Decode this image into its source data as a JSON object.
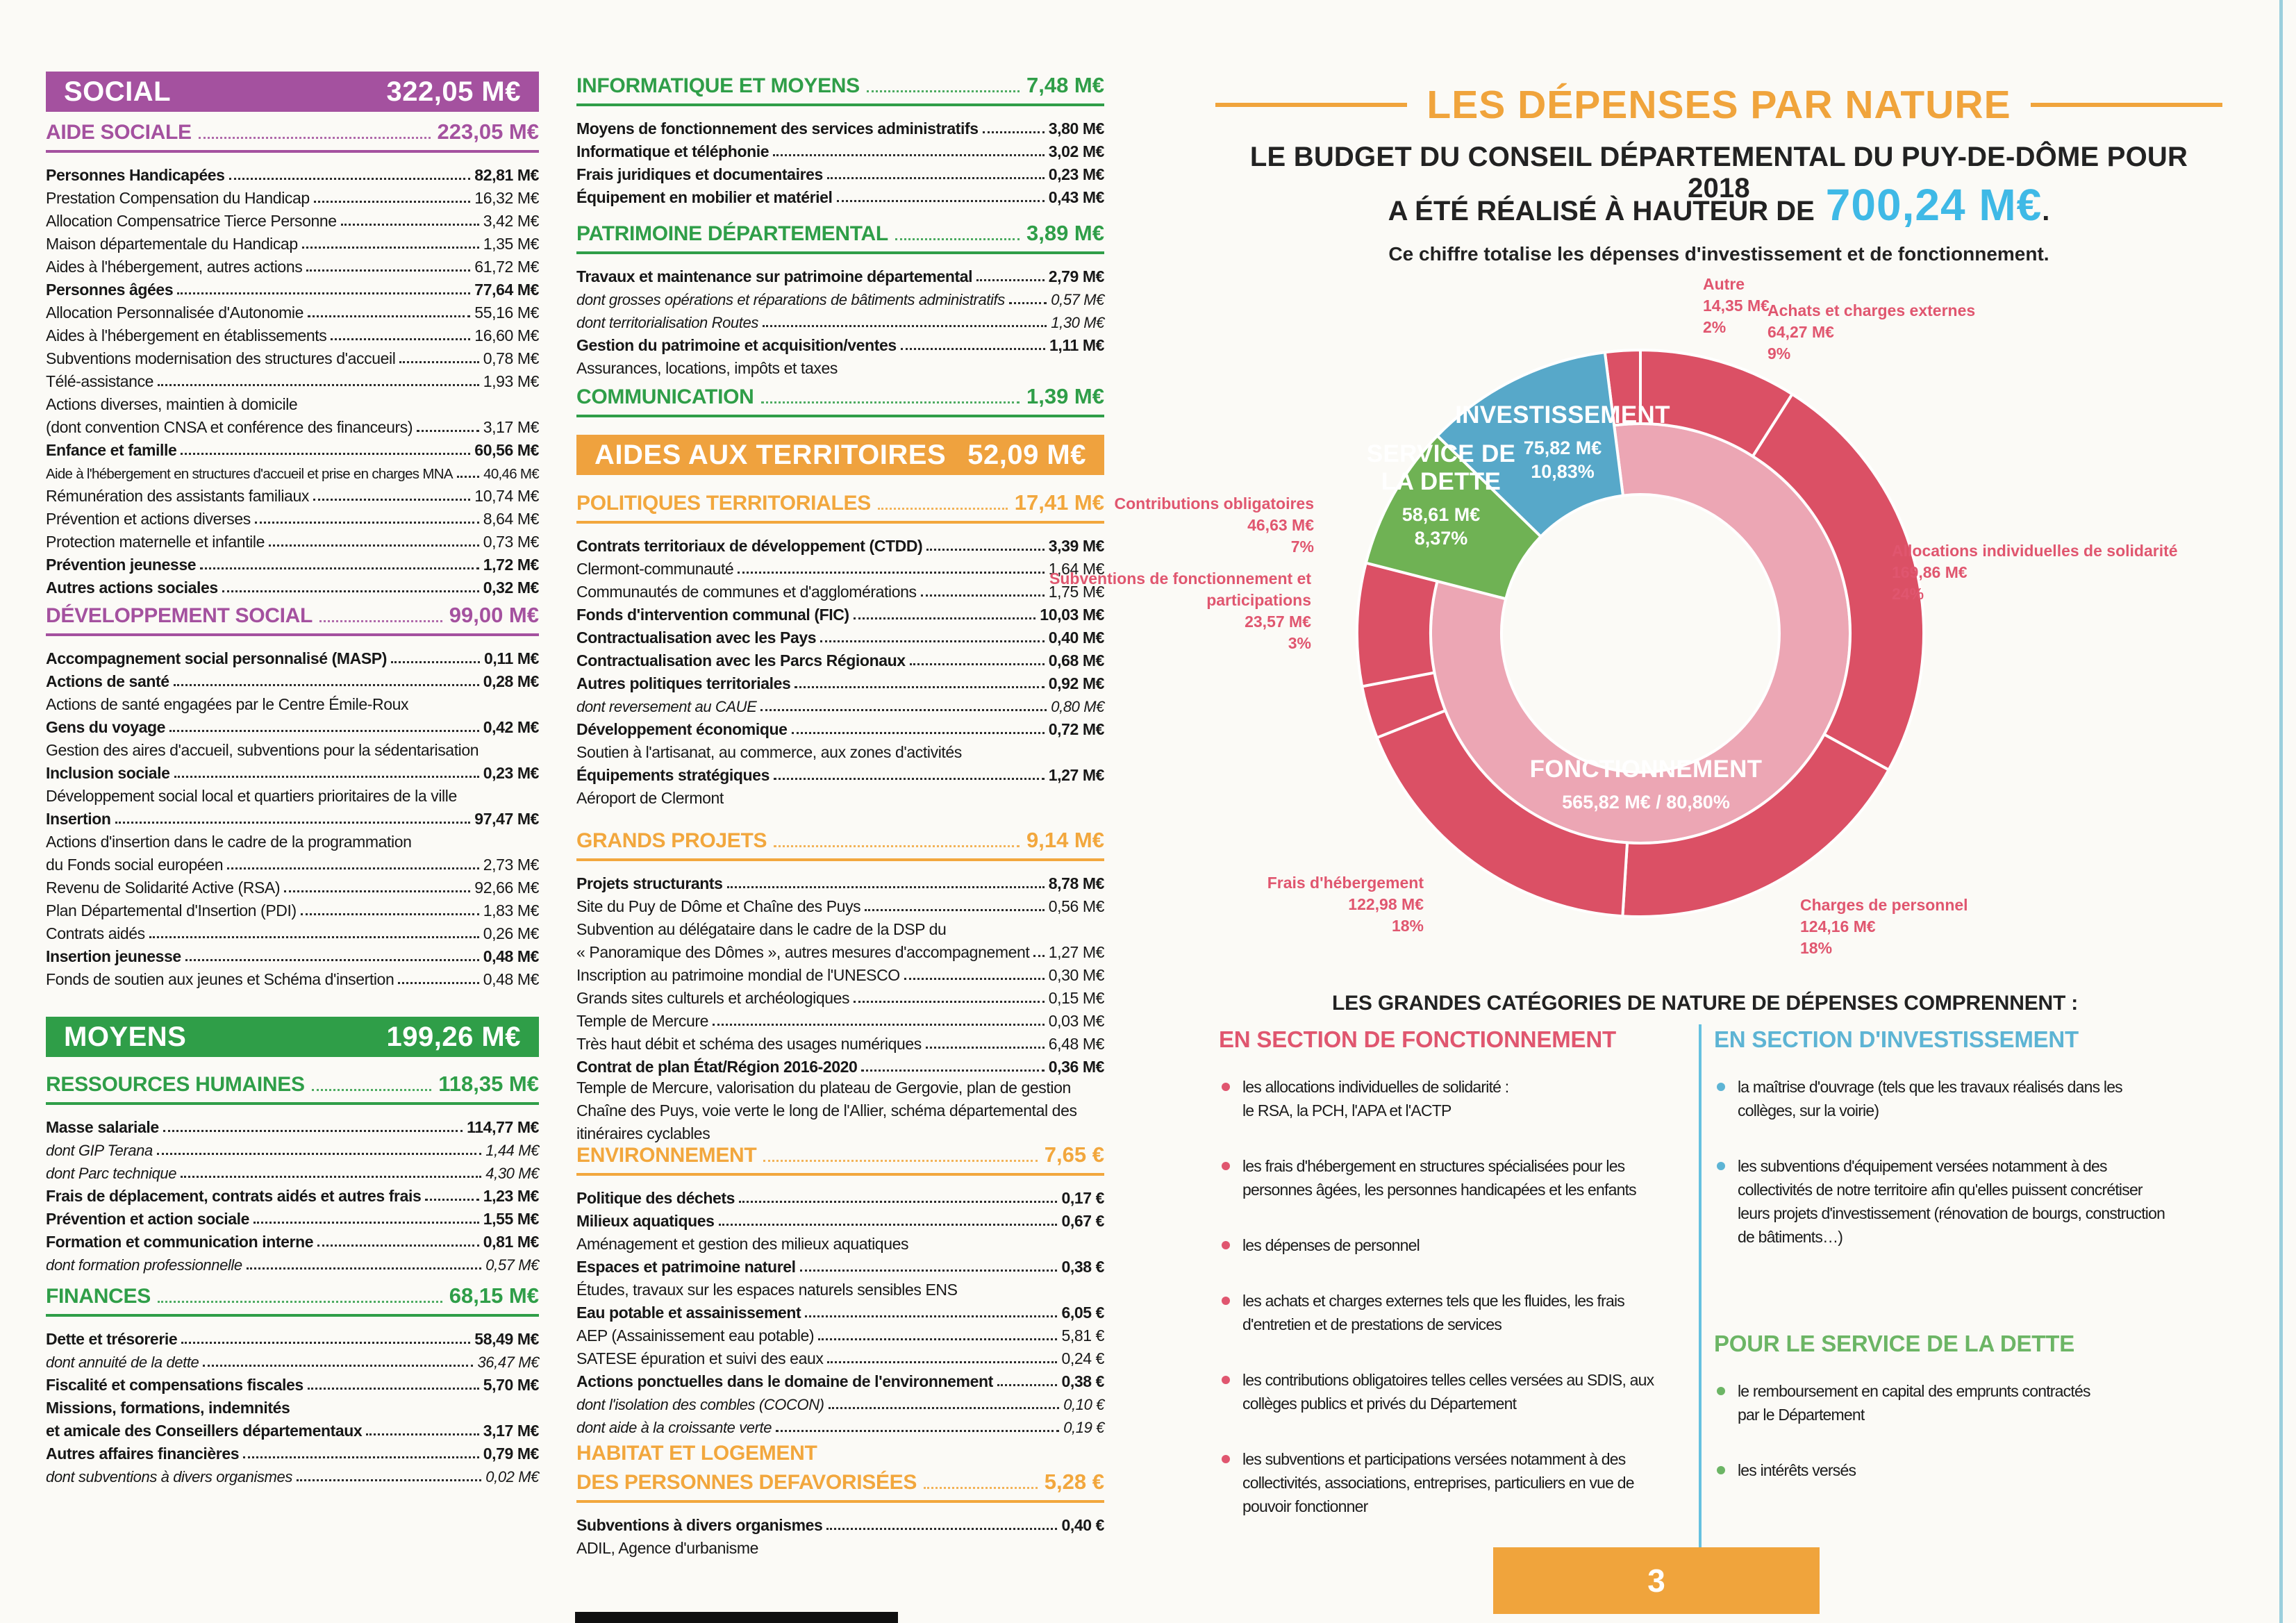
{
  "page": {
    "number": "3"
  },
  "colors": {
    "purple": "#a4519f",
    "green": "#2f9e48",
    "orange_banner": "#efa23e",
    "orange_text": "#f2a73d",
    "title_orange": "#f0a43c",
    "amount_blue": "#3fb9e6",
    "label_red": "#e0566f",
    "invest_blue": "#5db4d4",
    "dette_green": "#6cb565",
    "divider_blue": "#66c1e0",
    "edge_line": "#9ccfdd"
  },
  "left_column": {
    "sections": [
      {
        "kind": "banner",
        "color": "#a4519f",
        "title": "SOCIAL",
        "value": "322,05 M€"
      },
      {
        "kind": "group",
        "color": "#a4519f",
        "title": "AIDE SOCIALE",
        "value": "223,05 M€",
        "rows": [
          {
            "s": "b",
            "l": "Personnes Handicapées",
            "v": "82,81 M€"
          },
          {
            "s": "n",
            "l": "Prestation Compensation du Handicap",
            "v": "16,32 M€"
          },
          {
            "s": "n",
            "l": "Allocation Compensatrice Tierce Personne",
            "v": "3,42 M€"
          },
          {
            "s": "n",
            "l": "Maison départementale du Handicap",
            "v": "1,35 M€"
          },
          {
            "s": "n",
            "l": "Aides à l'hébergement, autres actions",
            "v": "61,72 M€"
          },
          {
            "s": "b",
            "l": "Personnes âgées",
            "v": "77,64 M€"
          },
          {
            "s": "n",
            "l": "Allocation Personnalisée d'Autonomie",
            "v": "55,16 M€"
          },
          {
            "s": "n",
            "l": "Aides à l'hébergement en établissements",
            "v": "16,60 M€"
          },
          {
            "s": "n",
            "l": "Subventions modernisation des structures d'accueil",
            "v": "0,78 M€"
          },
          {
            "s": "n",
            "l": "Télé-assistance",
            "v": "1,93 M€"
          },
          {
            "s": "d",
            "l": "Actions diverses, maintien à domicile",
            "v": ""
          },
          {
            "s": "n",
            "l": "(dont convention CNSA et conférence des financeurs)",
            "v": "3,17 M€"
          },
          {
            "s": "b",
            "l": "Enfance et famille",
            "v": "60,56 M€"
          },
          {
            "s": "t",
            "l": "Aide à l'hébergement en structures d'accueil et prise en charges MNA",
            "v": "40,46 M€"
          },
          {
            "s": "n",
            "l": "Rémunération des assistants familiaux",
            "v": "10,74 M€"
          },
          {
            "s": "n",
            "l": "Prévention et actions diverses",
            "v": "8,64 M€"
          },
          {
            "s": "n",
            "l": "Protection maternelle et infantile",
            "v": "0,73 M€"
          },
          {
            "s": "b",
            "l": "Prévention jeunesse",
            "v": "1,72 M€"
          },
          {
            "s": "b",
            "l": "Autres actions sociales",
            "v": "0,32 M€"
          }
        ]
      },
      {
        "kind": "group",
        "color": "#a4519f",
        "title": "DÉVELOPPEMENT SOCIAL",
        "value": "99,00 M€",
        "rows": [
          {
            "s": "b",
            "l": "Accompagnement social personnalisé (MASP)",
            "v": "0,11 M€"
          },
          {
            "s": "b",
            "l": "Actions de santé",
            "v": "0,28 M€"
          },
          {
            "s": "d",
            "l": "Actions de santé engagées par le Centre Émile-Roux",
            "v": ""
          },
          {
            "s": "b",
            "l": "Gens du voyage",
            "v": "0,42 M€"
          },
          {
            "s": "d",
            "l": "Gestion des aires d'accueil, subventions pour la sédentarisation",
            "v": ""
          },
          {
            "s": "b",
            "l": "Inclusion sociale",
            "v": "0,23 M€"
          },
          {
            "s": "d",
            "l": "Développement social local et quartiers prioritaires de la ville",
            "v": ""
          },
          {
            "s": "b",
            "l": "Insertion",
            "v": "97,47 M€"
          },
          {
            "s": "d",
            "l": "Actions d'insertion dans le cadre de la programmation",
            "v": ""
          },
          {
            "s": "n",
            "l": "du Fonds social européen",
            "v": "2,73 M€"
          },
          {
            "s": "n",
            "l": "Revenu de Solidarité Active (RSA)",
            "v": "92,66 M€"
          },
          {
            "s": "n",
            "l": "Plan Départemental d'Insertion (PDI)",
            "v": "1,83 M€"
          },
          {
            "s": "n",
            "l": "Contrats aidés",
            "v": "0,26 M€"
          },
          {
            "s": "b",
            "l": "Insertion jeunesse",
            "v": "0,48 M€"
          },
          {
            "s": "n",
            "l": "Fonds de soutien aux jeunes et Schéma d'insertion",
            "v": "0,48 M€"
          }
        ]
      },
      {
        "kind": "banner",
        "color": "#2f9e48",
        "title": "MOYENS",
        "value": "199,26 M€"
      },
      {
        "kind": "group",
        "color": "#2f9e48",
        "title": "RESSOURCES HUMAINES",
        "value": "118,35 M€",
        "rows": [
          {
            "s": "b",
            "l": "Masse salariale",
            "v": "114,77 M€"
          },
          {
            "s": "i",
            "l": "dont GIP Terana",
            "v": "1,44 M€"
          },
          {
            "s": "i",
            "l": "dont Parc technique",
            "v": "4,30 M€"
          },
          {
            "s": "b",
            "l": "Frais de déplacement, contrats aidés et autres frais",
            "v": "1,23 M€"
          },
          {
            "s": "b",
            "l": "Prévention et action sociale",
            "v": "1,55 M€"
          },
          {
            "s": "b",
            "l": "Formation et communication interne",
            "v": "0,81 M€"
          },
          {
            "s": "i",
            "l": "dont formation professionnelle",
            "v": "0,57 M€"
          }
        ]
      },
      {
        "kind": "group",
        "color": "#2f9e48",
        "title": "FINANCES",
        "value": "68,15 M€",
        "rows": [
          {
            "s": "b",
            "l": "Dette et trésorerie",
            "v": "58,49 M€"
          },
          {
            "s": "i",
            "l": "dont annuité de la dette",
            "v": "36,47 M€"
          },
          {
            "s": "b",
            "l": "Fiscalité et compensations fiscales",
            "v": "5,70 M€"
          },
          {
            "s": "b",
            "l": "Missions, formations, indemnités",
            "v": ""
          },
          {
            "s": "b",
            "l": "et amicale des Conseillers départementaux",
            "v": "3,17 M€"
          },
          {
            "s": "b",
            "l": "Autres affaires financières",
            "v": "0,79 M€"
          },
          {
            "s": "i",
            "l": "dont subventions à divers organismes",
            "v": "0,02 M€"
          }
        ]
      }
    ]
  },
  "middle_column": {
    "sections": [
      {
        "kind": "group",
        "color": "#2f9e48",
        "title": "INFORMATIQUE ET MOYENS",
        "value": "7,48 M€",
        "rows": [
          {
            "s": "b",
            "l": "Moyens de fonctionnement des services administratifs",
            "v": "3,80 M€"
          },
          {
            "s": "b",
            "l": "Informatique et téléphonie",
            "v": "3,02 M€"
          },
          {
            "s": "b",
            "l": "Frais juridiques et documentaires",
            "v": "0,23 M€"
          },
          {
            "s": "b",
            "l": "Équipement en mobilier et matériel",
            "v": "0,43 M€"
          }
        ]
      },
      {
        "kind": "group",
        "color": "#2f9e48",
        "title": "PATRIMOINE DÉPARTEMENTAL",
        "value": "3,89 M€",
        "rows": [
          {
            "s": "b",
            "l": "Travaux et maintenance sur patrimoine départemental",
            "v": "2,79 M€"
          },
          {
            "s": "i",
            "l": "dont grosses opérations et réparations de bâtiments administratifs",
            "v": "0,57 M€"
          },
          {
            "s": "i",
            "l": "dont territorialisation Routes",
            "v": "1,30 M€"
          },
          {
            "s": "b",
            "l": "Gestion du patrimoine et acquisition/ventes",
            "v": "1,11 M€"
          },
          {
            "s": "d",
            "l": "Assurances, locations, impôts et taxes",
            "v": ""
          }
        ]
      },
      {
        "kind": "group",
        "color": "#2f9e48",
        "title": "COMMUNICATION",
        "value": "1,39 M€",
        "rows": []
      },
      {
        "kind": "banner",
        "color": "#efa23e",
        "title": "AIDES AUX TERRITOIRES",
        "value": "52,09 M€"
      },
      {
        "kind": "group",
        "color": "#f2a73d",
        "title": "POLITIQUES TERRITORIALES",
        "value": "17,41 M€",
        "rows": [
          {
            "s": "b",
            "l": "Contrats territoriaux de développement (CTDD)",
            "v": "3,39 M€"
          },
          {
            "s": "n",
            "l": "Clermont-communauté",
            "v": "1,64 M€"
          },
          {
            "s": "n",
            "l": "Communautés de communes et d'agglomérations",
            "v": "1,75 M€"
          },
          {
            "s": "b",
            "l": "Fonds d'intervention communal (FIC)",
            "v": "10,03 M€"
          },
          {
            "s": "b",
            "l": "Contractualisation avec les Pays",
            "v": "0,40 M€"
          },
          {
            "s": "b",
            "l": "Contractualisation avec les Parcs Régionaux",
            "v": "0,68 M€"
          },
          {
            "s": "b",
            "l": "Autres politiques territoriales",
            "v": "0,92 M€"
          },
          {
            "s": "i",
            "l": "dont reversement au CAUE",
            "v": "0,80 M€"
          },
          {
            "s": "b",
            "l": "Développement économique",
            "v": "0,72 M€"
          },
          {
            "s": "d",
            "l": "Soutien à l'artisanat, au commerce, aux zones d'activités",
            "v": ""
          },
          {
            "s": "b",
            "l": "Équipements stratégiques",
            "v": "1,27 M€"
          },
          {
            "s": "d",
            "l": "Aéroport de Clermont",
            "v": ""
          }
        ]
      },
      {
        "kind": "group",
        "color": "#f2a73d",
        "title": "GRANDS PROJETS",
        "value": "9,14 M€",
        "rows": [
          {
            "s": "b",
            "l": "Projets structurants",
            "v": "8,78 M€"
          },
          {
            "s": "n",
            "l": "Site du Puy de Dôme et Chaîne des Puys",
            "v": "0,56 M€"
          },
          {
            "s": "d",
            "l": "Subvention au délégataire dans le cadre de la DSP du",
            "v": ""
          },
          {
            "s": "n",
            "l": "« Panoramique des Dômes », autres mesures d'accompagnement",
            "v": "1,27 M€"
          },
          {
            "s": "n",
            "l": "Inscription au patrimoine mondial de l'UNESCO",
            "v": "0,30 M€"
          },
          {
            "s": "n",
            "l": "Grands sites culturels et archéologiques",
            "v": "0,15 M€"
          },
          {
            "s": "n",
            "l": "Temple de Mercure",
            "v": "0,03 M€"
          },
          {
            "s": "n",
            "l": "Très haut débit et schéma des usages numériques",
            "v": "6,48 M€"
          },
          {
            "s": "b",
            "l": "Contrat de plan État/Région 2016-2020",
            "v": "0,36 M€"
          },
          {
            "s": "p",
            "l": "Temple de Mercure, valorisation du plateau de Gergovie, plan de gestion Chaîne des Puys, voie verte le long de l'Allier, schéma départemental des itinéraires cyclables",
            "v": ""
          }
        ]
      },
      {
        "kind": "group",
        "color": "#f2a73d",
        "title": "ENVIRONNEMENT",
        "value": "7,65 €",
        "rows": [
          {
            "s": "b",
            "l": "Politique des déchets",
            "v": "0,17 €"
          },
          {
            "s": "b",
            "l": "Milieux aquatiques",
            "v": "0,67 €"
          },
          {
            "s": "d",
            "l": "Aménagement et gestion des milieux aquatiques",
            "v": ""
          },
          {
            "s": "b",
            "l": "Espaces et patrimoine naturel",
            "v": "0,38 €"
          },
          {
            "s": "d",
            "l": "Études, travaux sur les espaces naturels sensibles ENS",
            "v": ""
          },
          {
            "s": "b",
            "l": "Eau potable et assainissement",
            "v": "6,05 €"
          },
          {
            "s": "n",
            "l": "AEP (Assainissement eau potable)",
            "v": "5,81 €"
          },
          {
            "s": "n",
            "l": "SATESE épuration et suivi des eaux",
            "v": "0,24 €"
          },
          {
            "s": "b",
            "l": "Actions ponctuelles dans le domaine de l'environnement",
            "v": "0,38 €"
          },
          {
            "s": "i",
            "l": "dont l'isolation des combles (COCON)",
            "v": "0,10 €"
          },
          {
            "s": "i",
            "l": "dont aide à la croissante verte",
            "v": "0,19 €"
          }
        ]
      },
      {
        "kind": "group2",
        "color": "#f2a73d",
        "title_line1": "HABITAT ET LOGEMENT",
        "title": "DES PERSONNES DEFAVORISÉES",
        "value": "5,28 €",
        "rows": [
          {
            "s": "b",
            "l": "Subventions à divers organismes",
            "v": "0,40 €"
          },
          {
            "s": "d",
            "l": "ADIL, Agence d'urbanisme",
            "v": ""
          }
        ]
      }
    ]
  },
  "header": {
    "title": "LES DÉPENSES PAR NATURE",
    "line1": "LE BUDGET DU CONSEIL DÉPARTEMENTAL DU PUY-DE-DÔME POUR 2018",
    "line2_prefix": "A ÉTÉ RÉALISÉ À HAUTEUR DE",
    "amount": "700,24 M€",
    "line2_suffix": ".",
    "subtitle": "Ce chiffre totalise les dépenses d'investissement et de fonctionnement."
  },
  "chart_data": {
    "type": "pie",
    "title": "Les dépenses par nature — budget réalisé 2018",
    "units": "M€",
    "total_meur": 700.24,
    "legend_position": "around",
    "segments_main": [
      {
        "name": "FONCTIONNEMENT",
        "value": 565.82,
        "pct": 80.8,
        "value_label": "565,82 M€",
        "pct_label": "80,80%",
        "value_pct_label": "565,82 M€  /  80,80%",
        "color": "#eca6b4"
      },
      {
        "name": "SERVICE DE LA DETTE",
        "value": 58.61,
        "pct": 8.37,
        "value_label": "58,61 M€",
        "pct_label": "8,37%",
        "color": "#6fb254"
      },
      {
        "name": "INVESTISSEMENT",
        "value": 75.82,
        "pct": 10.83,
        "value_label": "75,82 M€",
        "pct_label": "10,83%",
        "color": "#57a8c9"
      }
    ],
    "segments_fonctionnement": [
      {
        "name": "Autre",
        "value": 14.35,
        "pct": 2,
        "value_label": "14,35 M€",
        "pct_label": "2%",
        "color": "#db5065"
      },
      {
        "name": "Achats et charges externes",
        "value": 64.27,
        "pct": 9,
        "value_label": "64,27 M€",
        "pct_label": "9%",
        "color": "#db5065"
      },
      {
        "name": "Allocations individuelles de solidarité",
        "value": 169.86,
        "pct": 24,
        "value_label": "169,86 M€",
        "pct_label": "24%",
        "color": "#db5065"
      },
      {
        "name": "Charges de personnel",
        "value": 124.16,
        "pct": 18,
        "value_label": "124,16 M€",
        "pct_label": "18%",
        "color": "#db5065"
      },
      {
        "name": "Frais d'hébergement",
        "value": 122.98,
        "pct": 18,
        "value_label": "122,98 M€",
        "pct_label": "18%",
        "color": "#db5065"
      },
      {
        "name": "Subventions de fonctionnement et participations",
        "value": 23.57,
        "pct": 3,
        "value_label": "23,57 M€",
        "pct_label": "3%",
        "color": "#db5065"
      },
      {
        "name": "Contributions obligatoires",
        "value": 46.63,
        "pct": 7,
        "value_label": "46,63 M€",
        "pct_label": "7%",
        "color": "#db5065"
      }
    ]
  },
  "categories": {
    "heading": "LES GRANDES CATÉGORIES DE NATURE DE DÉPENSES COMPRENNENT :",
    "fonctionnement": {
      "title": "EN SECTION DE FONCTIONNEMENT",
      "color": "#e0566f",
      "bullets": [
        "les allocations individuelles de solidarité :\nle RSA, la PCH, l'APA et l'ACTP",
        "les frais d'hébergement en structures spécialisées pour les\npersonnes âgées, les personnes handicapées et les enfants",
        "les dépenses de personnel",
        "les achats et charges externes tels que les fluides, les frais\nd'entretien et de prestations de services",
        "les contributions obligatoires telles celles versées au SDIS, aux\ncollèges publics et privés du Département",
        "les subventions et participations versées notamment  à des\ncollectivités, associations, entreprises, particuliers en vue de\npouvoir fonctionner"
      ]
    },
    "investissement": {
      "title": "EN SECTION D'INVESTISSEMENT",
      "color": "#5db4d4",
      "bullets": [
        "la maîtrise d'ouvrage (tels que les travaux réalisés dans les\ncollèges, sur la voirie)",
        "les subventions d'équipement versées notamment à des\ncollectivités de notre territoire afin qu'elles puissent concrétiser\nleurs projets d'investissement (rénovation de bourgs, construction\nde bâtiments…)"
      ]
    },
    "dette": {
      "title": "POUR LE SERVICE DE LA DETTE",
      "color": "#6cb565",
      "bullets": [
        "le remboursement en capital des emprunts contractés\npar le Département",
        "les intérêts versés"
      ]
    }
  }
}
